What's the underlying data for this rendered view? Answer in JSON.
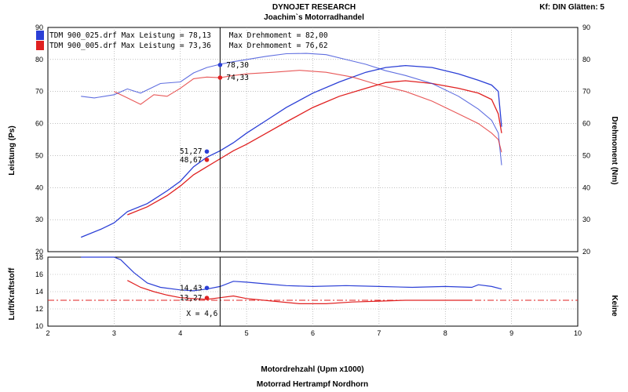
{
  "header": {
    "title": "DYNOJET RESEARCH",
    "subtitle": "Joachim`s Motorradhandel",
    "corner": "Kf: DIN  Glätten: 5"
  },
  "footer": {
    "xlabel": "Motordrehzahl (Upm x1000)",
    "shop": "Motorrad Hertrampf Nordhorn"
  },
  "colors": {
    "blue": "#2b3fd6",
    "red": "#e02020",
    "blue_light": "#7a86e6",
    "red_light": "#f08a8a"
  },
  "legend": [
    {
      "text": "TDM 900_025.drf Max Leistung = 78,13    Max Drehmoment = 82,00",
      "color": "#2b3fd6"
    },
    {
      "text": "TDM 900_005.drf Max Leistung = 73,36    Max Drehmoment = 76,62",
      "color": "#e02020"
    }
  ],
  "chart_data": [
    {
      "type": "line",
      "title": "",
      "xlabel": "Motordrehzahl (Upm x1000)",
      "ylabel_left": "Leistung (Ps)",
      "ylabel_right": "Drehmoment (Nm)",
      "xlim": [
        2,
        10
      ],
      "ylim_left": [
        20,
        90
      ],
      "ylim_right": [
        20,
        90
      ],
      "x_ticks": [
        "2",
        "3",
        "4",
        "5",
        "6",
        "7",
        "8",
        "9",
        "10"
      ],
      "y_ticks_left": [
        "20",
        "30",
        "40",
        "50",
        "60",
        "70",
        "80",
        "90"
      ],
      "y_ticks_right": [
        "20",
        "30",
        "40",
        "50",
        "60",
        "70",
        "80",
        "90"
      ],
      "grid": true,
      "legend_position": "top-left",
      "cursor_x": 4.6,
      "series": [
        {
          "name": "TDM 900_025.drf",
          "quantity": "Leistung",
          "color": "#2b3fd6",
          "points": [
            [
              2.5,
              24.5
            ],
            [
              2.8,
              27
            ],
            [
              3.0,
              29
            ],
            [
              3.2,
              32.5
            ],
            [
              3.5,
              35
            ],
            [
              3.8,
              39
            ],
            [
              4.0,
              42
            ],
            [
              4.2,
              46.5
            ],
            [
              4.4,
              49.5
            ],
            [
              4.6,
              51.5
            ],
            [
              4.8,
              54
            ],
            [
              5.0,
              57
            ],
            [
              5.3,
              61
            ],
            [
              5.6,
              65
            ],
            [
              6.0,
              69.5
            ],
            [
              6.4,
              73
            ],
            [
              6.8,
              76
            ],
            [
              7.1,
              77.5
            ],
            [
              7.4,
              78.1
            ],
            [
              7.8,
              77.5
            ],
            [
              8.2,
              75.5
            ],
            [
              8.5,
              73.5
            ],
            [
              8.7,
              72
            ],
            [
              8.8,
              70
            ],
            [
              8.85,
              59
            ]
          ]
        },
        {
          "name": "TDM 900_005.drf",
          "quantity": "Leistung",
          "color": "#e02020",
          "points": [
            [
              3.2,
              31.5
            ],
            [
              3.5,
              34
            ],
            [
              3.8,
              37.5
            ],
            [
              4.0,
              40.5
            ],
            [
              4.2,
              44
            ],
            [
              4.4,
              46.5
            ],
            [
              4.6,
              49
            ],
            [
              4.8,
              51.5
            ],
            [
              5.0,
              53.5
            ],
            [
              5.3,
              57
            ],
            [
              5.6,
              60.5
            ],
            [
              6.0,
              65
            ],
            [
              6.4,
              68.5
            ],
            [
              6.8,
              71
            ],
            [
              7.1,
              72.8
            ],
            [
              7.4,
              73.36
            ],
            [
              7.8,
              72.5
            ],
            [
              8.2,
              71
            ],
            [
              8.5,
              69.5
            ],
            [
              8.7,
              67.5
            ],
            [
              8.8,
              63
            ],
            [
              8.85,
              57
            ]
          ]
        },
        {
          "name": "TDM 900_025.drf",
          "quantity": "Drehmoment",
          "color": "#2b3fd6",
          "points": [
            [
              2.5,
              68.5
            ],
            [
              2.7,
              68
            ],
            [
              3.0,
              69
            ],
            [
              3.2,
              70.8
            ],
            [
              3.4,
              69.5
            ],
            [
              3.7,
              72.5
            ],
            [
              4.0,
              73
            ],
            [
              4.2,
              75.8
            ],
            [
              4.4,
              77.5
            ],
            [
              4.6,
              78.5
            ],
            [
              4.8,
              79.3
            ],
            [
              5.0,
              80
            ],
            [
              5.3,
              81
            ],
            [
              5.6,
              81.8
            ],
            [
              5.9,
              81.9
            ],
            [
              6.2,
              81.5
            ],
            [
              6.5,
              80
            ],
            [
              6.8,
              78.5
            ],
            [
              7.1,
              76.5
            ],
            [
              7.4,
              75
            ],
            [
              7.8,
              72.5
            ],
            [
              8.2,
              68.5
            ],
            [
              8.5,
              64.5
            ],
            [
              8.7,
              61
            ],
            [
              8.8,
              57
            ],
            [
              8.85,
              47
            ]
          ]
        },
        {
          "name": "TDM 900_005.drf",
          "quantity": "Drehmoment",
          "color": "#e02020",
          "points": [
            [
              3.0,
              70
            ],
            [
              3.2,
              68
            ],
            [
              3.4,
              66
            ],
            [
              3.6,
              69
            ],
            [
              3.8,
              68.5
            ],
            [
              4.0,
              71
            ],
            [
              4.2,
              74
            ],
            [
              4.4,
              74.5
            ],
            [
              4.6,
              74.3
            ],
            [
              4.8,
              75
            ],
            [
              5.0,
              75.5
            ],
            [
              5.4,
              76
            ],
            [
              5.8,
              76.6
            ],
            [
              6.2,
              76
            ],
            [
              6.6,
              74.5
            ],
            [
              7.0,
              72
            ],
            [
              7.4,
              70
            ],
            [
              7.8,
              67
            ],
            [
              8.2,
              63
            ],
            [
              8.5,
              60
            ],
            [
              8.7,
              57
            ],
            [
              8.8,
              55
            ],
            [
              8.85,
              51
            ]
          ]
        }
      ],
      "annotations": [
        {
          "x": 4.6,
          "y": 78.3,
          "text": "78,30",
          "color": "#2b3fd6"
        },
        {
          "x": 4.6,
          "y": 74.33,
          "text": "74,33",
          "color": "#e02020"
        },
        {
          "x": 4.4,
          "y": 51.27,
          "text": "51,27",
          "color": "#2b3fd6"
        },
        {
          "x": 4.4,
          "y": 48.67,
          "text": "48,67",
          "color": "#e02020"
        }
      ]
    },
    {
      "type": "line",
      "title": "",
      "xlabel": "Motordrehzahl (Upm x1000)",
      "ylabel_left": "Luft/Kraftstoff",
      "ylabel_right": "Keine",
      "xlim": [
        2,
        10
      ],
      "ylim_left": [
        10,
        18
      ],
      "y_ticks_left": [
        "10",
        "12",
        "14",
        "16",
        "18"
      ],
      "grid": true,
      "reference_line": 13.0,
      "cursor_x": 4.6,
      "cursor_label": "X = 4,6",
      "series": [
        {
          "name": "TDM 900_025.drf",
          "color": "#2b3fd6",
          "points": [
            [
              2.5,
              18
            ],
            [
              3.0,
              18
            ],
            [
              3.1,
              17.7
            ],
            [
              3.3,
              16.2
            ],
            [
              3.5,
              15
            ],
            [
              3.7,
              14.5
            ],
            [
              4.0,
              14.2
            ],
            [
              4.2,
              14.1
            ],
            [
              4.4,
              14.3
            ],
            [
              4.6,
              14.6
            ],
            [
              4.8,
              15.2
            ],
            [
              5.0,
              15.1
            ],
            [
              5.3,
              14.9
            ],
            [
              5.6,
              14.7
            ],
            [
              6.0,
              14.6
            ],
            [
              6.5,
              14.7
            ],
            [
              7.0,
              14.6
            ],
            [
              7.5,
              14.5
            ],
            [
              8.0,
              14.6
            ],
            [
              8.4,
              14.5
            ],
            [
              8.5,
              14.8
            ],
            [
              8.7,
              14.6
            ],
            [
              8.85,
              14.3
            ]
          ]
        },
        {
          "name": "TDM 900_005.drf",
          "color": "#e02020",
          "points": [
            [
              3.2,
              15.3
            ],
            [
              3.4,
              14.5
            ],
            [
              3.6,
              14.0
            ],
            [
              3.8,
              13.6
            ],
            [
              4.0,
              13.3
            ],
            [
              4.2,
              13.2
            ],
            [
              4.4,
              13.1
            ],
            [
              4.6,
              13.3
            ],
            [
              4.8,
              13.5
            ],
            [
              5.0,
              13.2
            ],
            [
              5.4,
              12.9
            ],
            [
              5.8,
              12.6
            ],
            [
              6.2,
              12.6
            ],
            [
              6.6,
              12.8
            ],
            [
              7.0,
              12.9
            ],
            [
              7.4,
              13.0
            ],
            [
              7.8,
              13.0
            ],
            [
              8.4,
              13.0
            ]
          ]
        }
      ],
      "annotations": [
        {
          "x": 4.4,
          "y": 14.43,
          "text": "14,43",
          "color": "#2b3fd6"
        },
        {
          "x": 4.4,
          "y": 13.27,
          "text": "13,27",
          "color": "#e02020"
        }
      ]
    }
  ]
}
